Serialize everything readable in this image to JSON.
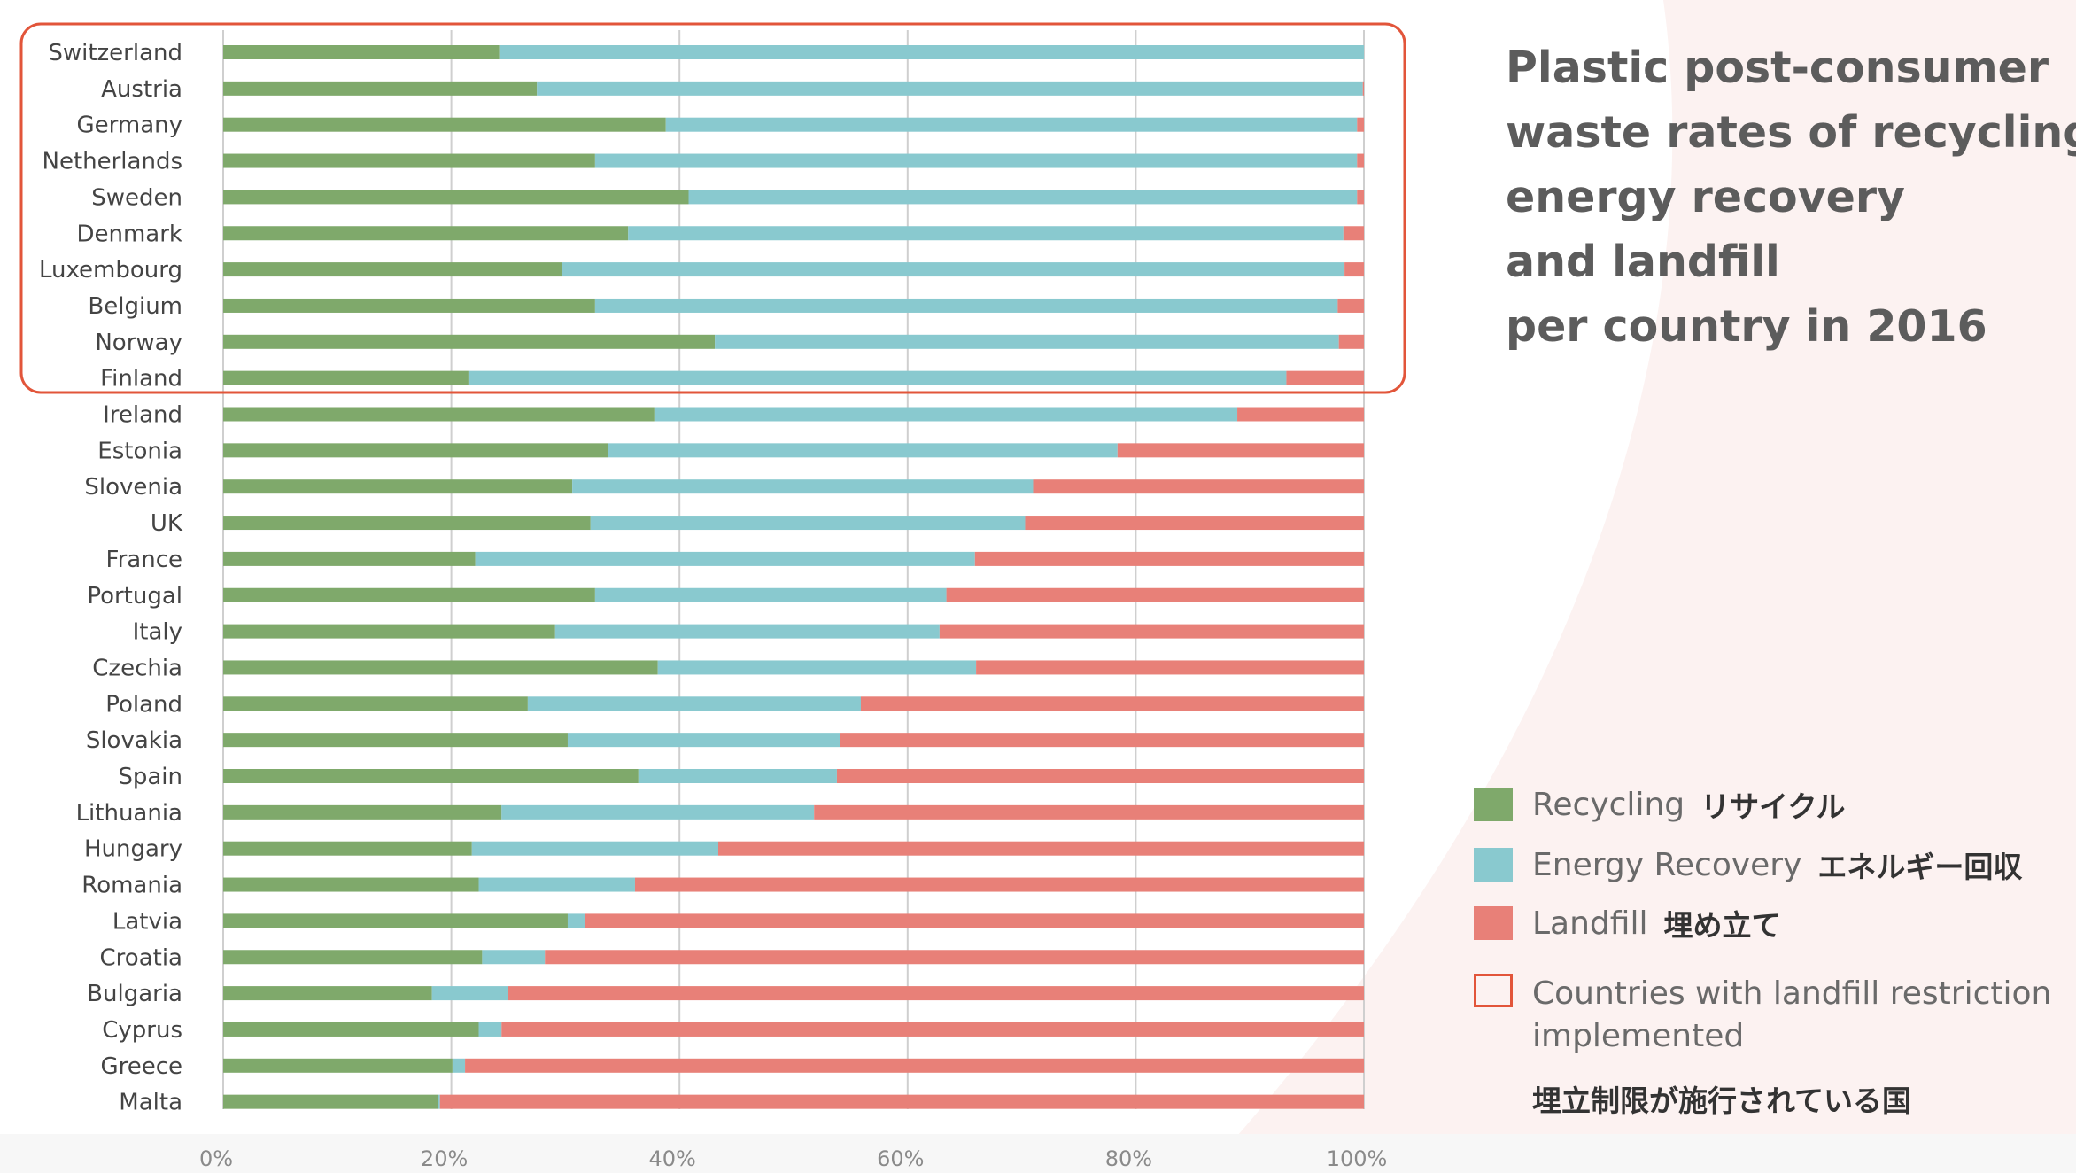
{
  "title_lines": [
    "Plastic post-consumer",
    "waste rates of recycling,",
    "energy recovery",
    "and landfill",
    "per country in 2016"
  ],
  "colors": {
    "recycling": "#7fa96b",
    "energy_recovery": "#89c9cf",
    "landfill": "#e88078",
    "highlight": "#e2553a",
    "grid": "#cfcfcf",
    "text": "#444444"
  },
  "legend": {
    "recycling": {
      "label": "Recycling",
      "ja": "リサイクル"
    },
    "energy_recovery": {
      "label": "Energy Recovery",
      "ja": "エネルギー回収"
    },
    "landfill": {
      "label": "Landfill",
      "ja": "埋め立て"
    },
    "restriction": {
      "label": "Countries with landfill restriction implemented",
      "ja": "埋立制限が施行されている国"
    }
  },
  "chart_data": {
    "type": "bar",
    "orientation": "horizontal",
    "stacked": true,
    "xlim": [
      0,
      100
    ],
    "x_ticks": [
      "0%",
      "20%",
      "40%",
      "60%",
      "80%",
      "100%"
    ],
    "grid": true,
    "categories": [
      "Switzerland",
      "Austria",
      "Germany",
      "Netherlands",
      "Sweden",
      "Denmark",
      "Luxembourg",
      "Belgium",
      "Norway",
      "Finland",
      "Ireland",
      "Estonia",
      "Slovenia",
      "UK",
      "France",
      "Portugal",
      "Italy",
      "Czechia",
      "Poland",
      "Slovakia",
      "Spain",
      "Lithuania",
      "Hungary",
      "Romania",
      "Latvia",
      "Croatia",
      "Bulgaria",
      "Cyprus",
      "Greece",
      "Malta"
    ],
    "series": [
      {
        "name": "Recycling",
        "values": [
          24.2,
          27.5,
          38.8,
          32.6,
          40.8,
          35.5,
          29.7,
          32.6,
          43.1,
          21.5,
          37.8,
          33.7,
          30.6,
          32.2,
          22.1,
          32.6,
          29.1,
          38.1,
          26.7,
          30.2,
          36.4,
          24.4,
          21.8,
          22.4,
          30.2,
          22.7,
          18.3,
          22.4,
          20.1,
          18.8
        ]
      },
      {
        "name": "Energy Recovery",
        "values": [
          75.8,
          72.4,
          60.6,
          66.8,
          58.6,
          62.7,
          68.6,
          65.1,
          54.7,
          71.7,
          51.1,
          44.7,
          40.4,
          38.1,
          43.8,
          30.8,
          33.7,
          27.9,
          29.2,
          23.9,
          17.4,
          27.4,
          21.6,
          13.7,
          1.5,
          5.5,
          6.7,
          2.0,
          1.1,
          0.2
        ]
      },
      {
        "name": "Landfill",
        "values": [
          0.0,
          0.1,
          0.6,
          0.6,
          0.6,
          1.8,
          1.7,
          2.3,
          2.2,
          6.8,
          11.1,
          21.6,
          29.0,
          29.7,
          34.1,
          36.6,
          37.2,
          34.0,
          44.1,
          45.9,
          46.2,
          48.2,
          56.6,
          63.9,
          68.3,
          71.8,
          75.0,
          75.6,
          78.8,
          81.0
        ]
      }
    ],
    "highlighted_categories": [
      "Switzerland",
      "Austria",
      "Germany",
      "Netherlands",
      "Sweden",
      "Denmark",
      "Luxembourg",
      "Belgium",
      "Norway",
      "Finland"
    ]
  }
}
